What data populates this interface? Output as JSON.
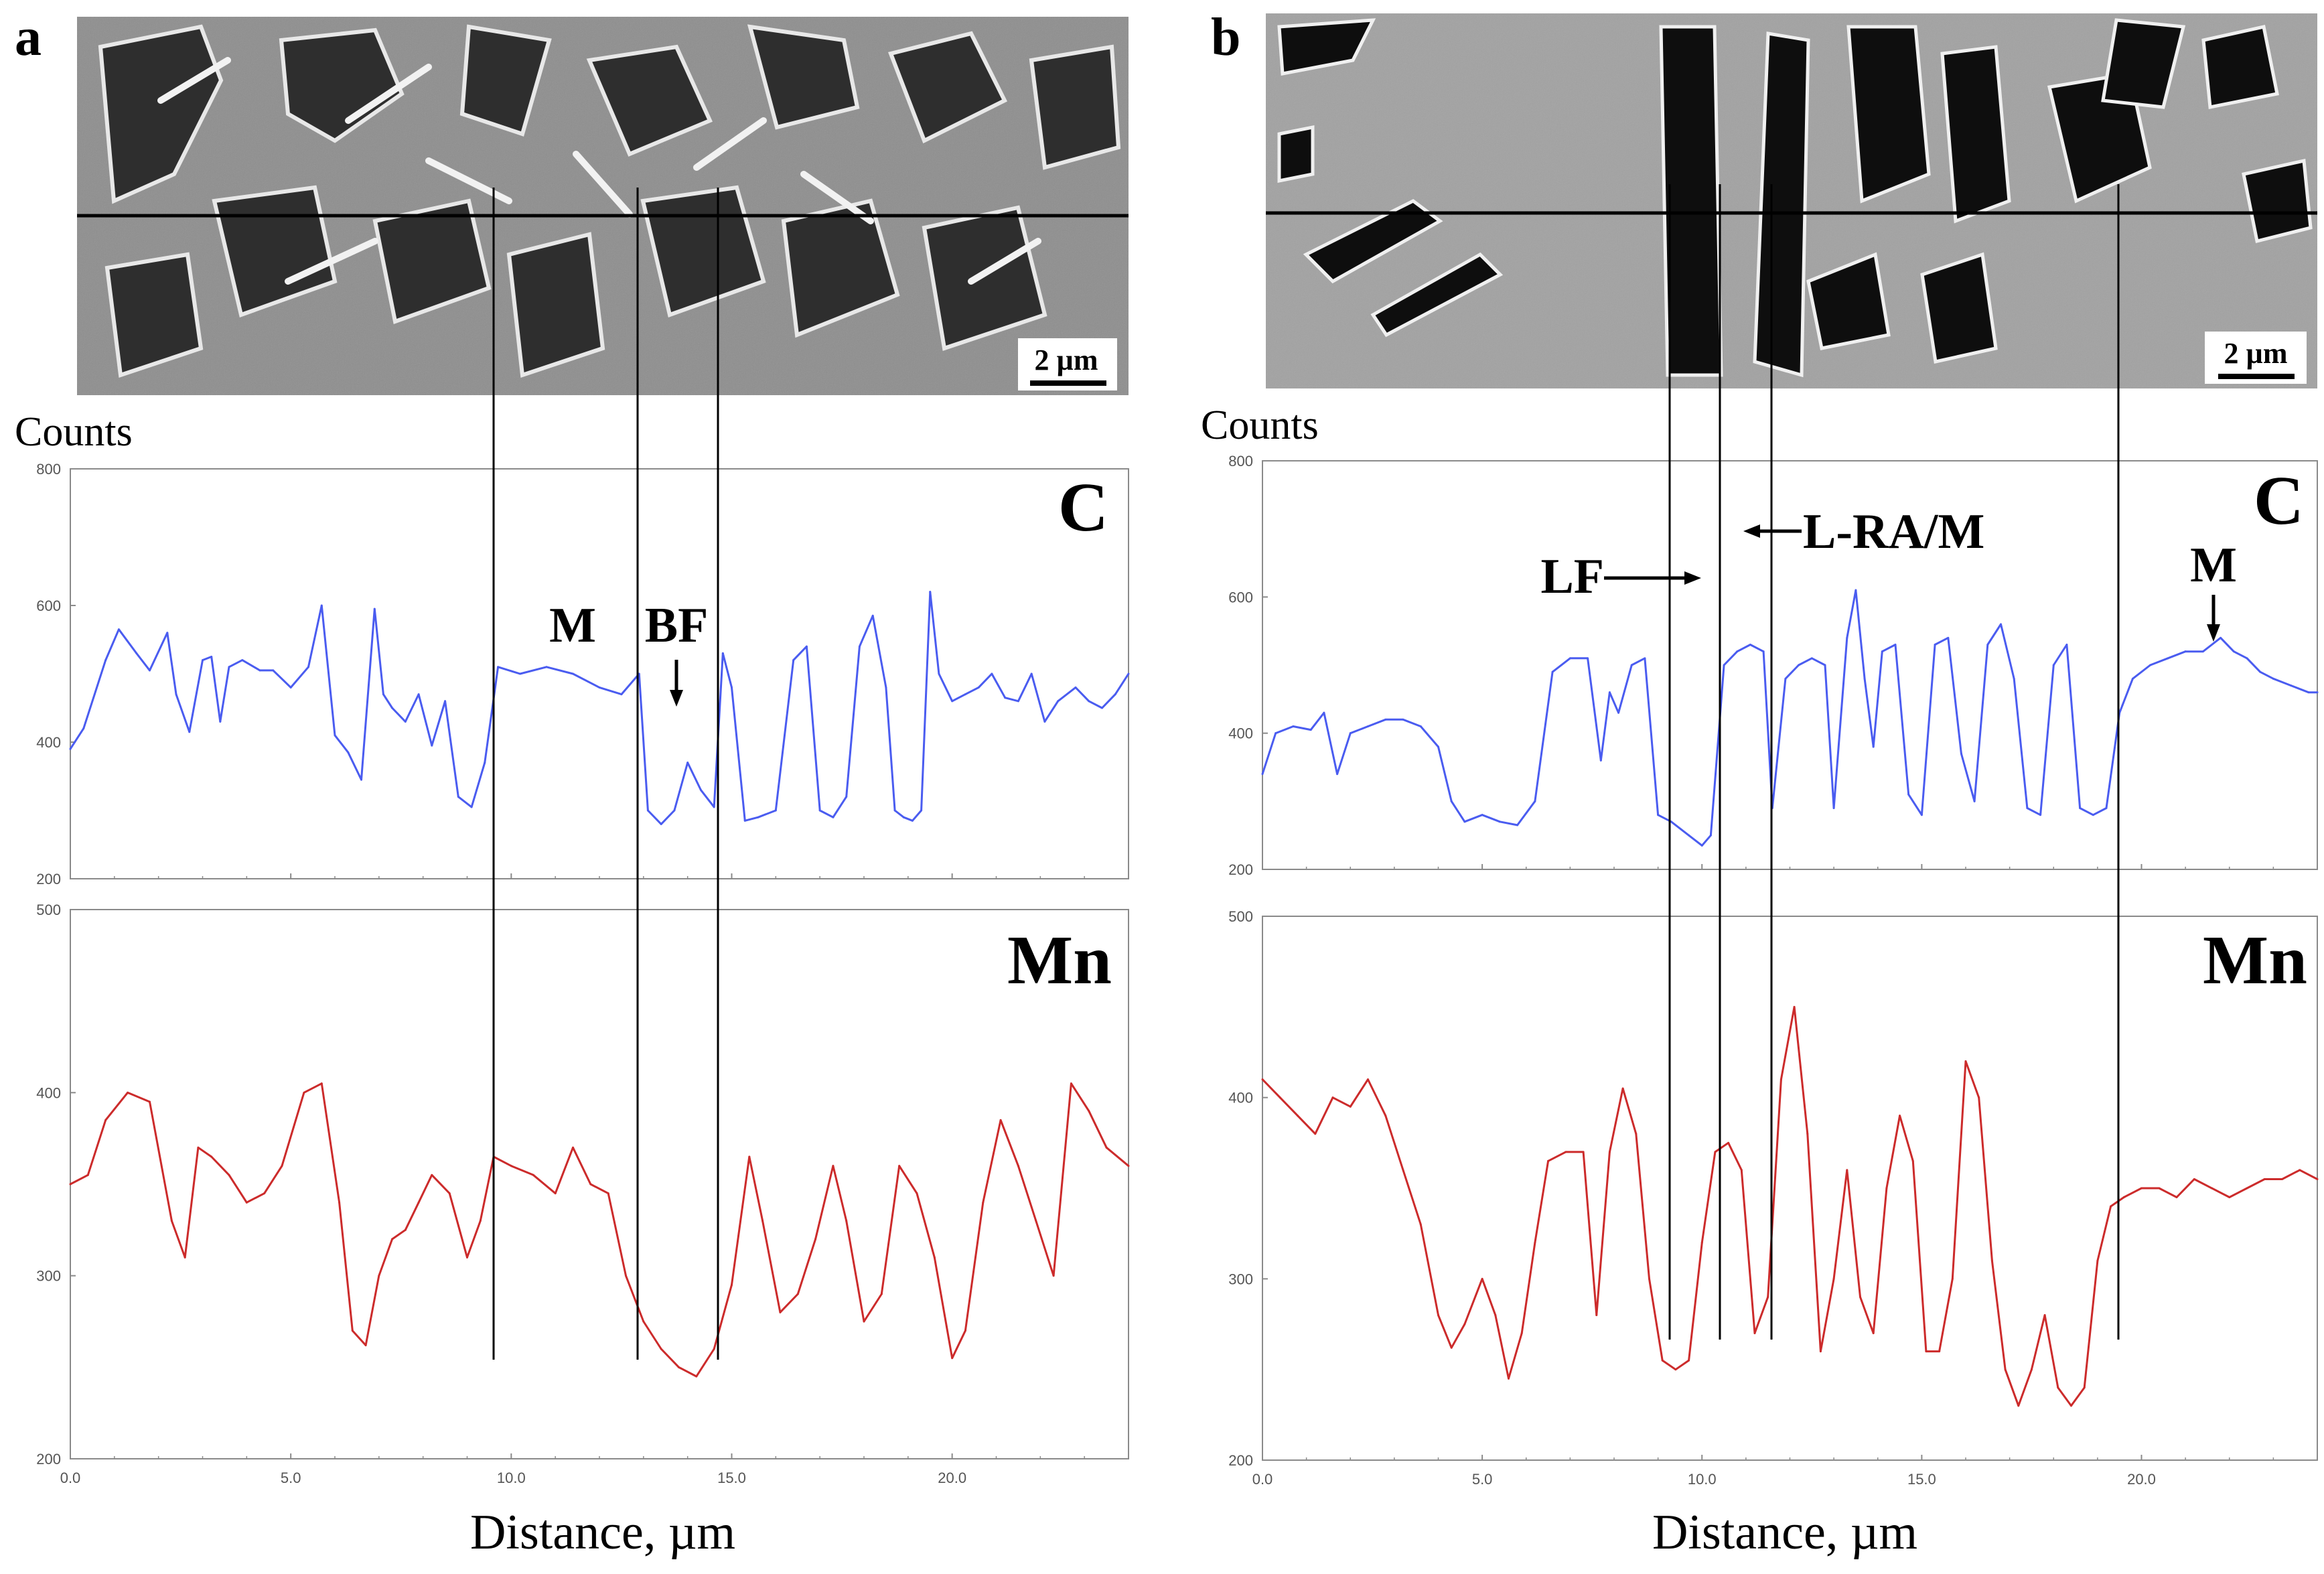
{
  "figure": {
    "panels": [
      {
        "letter": "a",
        "scale_bar": "2 µm",
        "y_axis_title": "Counts",
        "x_axis_title": "Distance, µm",
        "annotations": [
          "M",
          "BF"
        ]
      },
      {
        "letter": "b",
        "scale_bar": "2 µm",
        "y_axis_title": "Counts",
        "x_axis_title": "Distance, µm",
        "annotations": [
          "LF",
          "L-RA/M",
          "M"
        ]
      }
    ]
  },
  "colors": {
    "C": "#4a5cf0",
    "Mn": "#cc2b2b",
    "axis": "#8a8a8a",
    "micro_bg": "#8c8c8c"
  },
  "chart_data": [
    {
      "panel": "a",
      "element": "C",
      "type": "line",
      "xlabel": "Distance, µm",
      "ylabel": "Counts",
      "xlim": [
        0,
        24
      ],
      "ylim": [
        200,
        800
      ],
      "yticks": [
        200,
        400,
        600,
        800
      ],
      "xticks": [
        0,
        5,
        10,
        15,
        20
      ],
      "xtick_labels": [
        "0.0",
        "5.0",
        "10.0",
        "15.0",
        "20.0"
      ],
      "x": [
        0.0,
        0.3,
        0.8,
        1.1,
        1.5,
        1.8,
        2.2,
        2.4,
        2.7,
        3.0,
        3.2,
        3.4,
        3.6,
        3.9,
        4.3,
        4.6,
        5.0,
        5.4,
        5.7,
        6.0,
        6.3,
        6.6,
        6.9,
        7.1,
        7.3,
        7.6,
        7.9,
        8.2,
        8.5,
        8.8,
        9.1,
        9.4,
        9.7,
        10.2,
        10.8,
        11.4,
        12.0,
        12.5,
        12.9,
        13.1,
        13.4,
        13.7,
        14.0,
        14.3,
        14.6,
        14.8,
        15.0,
        15.3,
        15.6,
        16.0,
        16.4,
        16.7,
        17.0,
        17.3,
        17.6,
        17.9,
        18.2,
        18.5,
        18.7,
        18.9,
        19.1,
        19.3,
        19.5,
        19.7,
        20.0,
        20.3,
        20.6,
        20.9,
        21.2,
        21.5,
        21.8,
        22.1,
        22.4,
        22.8,
        23.1,
        23.4,
        23.7,
        24.0
      ],
      "y": [
        390,
        420,
        520,
        565,
        530,
        505,
        560,
        470,
        415,
        520,
        525,
        430,
        510,
        520,
        505,
        505,
        480,
        510,
        600,
        410,
        385,
        345,
        595,
        470,
        450,
        430,
        470,
        395,
        460,
        320,
        305,
        370,
        510,
        500,
        510,
        500,
        480,
        470,
        500,
        300,
        280,
        300,
        370,
        330,
        305,
        530,
        480,
        285,
        290,
        300,
        520,
        540,
        300,
        290,
        320,
        540,
        585,
        480,
        300,
        290,
        285,
        300,
        620,
        500,
        460,
        470,
        480,
        500,
        465,
        460,
        500,
        430,
        460,
        480,
        460,
        450,
        470,
        500
      ],
      "series": [
        {
          "name": "C"
        }
      ]
    },
    {
      "panel": "a",
      "element": "Mn",
      "type": "line",
      "xlabel": "Distance, µm",
      "ylabel": "Counts",
      "xlim": [
        0,
        24
      ],
      "ylim": [
        200,
        500
      ],
      "yticks": [
        200,
        300,
        400,
        500
      ],
      "xticks": [
        0,
        5,
        10,
        15,
        20
      ],
      "xtick_labels": [
        "0.0",
        "5.0",
        "10.0",
        "15.0",
        "20.0"
      ],
      "x": [
        0.0,
        0.4,
        0.8,
        1.3,
        1.8,
        2.3,
        2.6,
        2.9,
        3.2,
        3.6,
        4.0,
        4.4,
        4.8,
        5.3,
        5.7,
        6.1,
        6.4,
        6.7,
        7.0,
        7.3,
        7.6,
        7.9,
        8.2,
        8.6,
        9.0,
        9.3,
        9.6,
        10.0,
        10.5,
        11.0,
        11.4,
        11.8,
        12.2,
        12.6,
        13.0,
        13.4,
        13.8,
        14.2,
        14.6,
        15.0,
        15.4,
        15.7,
        16.1,
        16.5,
        16.9,
        17.3,
        17.6,
        18.0,
        18.4,
        18.8,
        19.2,
        19.6,
        20.0,
        20.3,
        20.7,
        21.1,
        21.5,
        21.9,
        22.3,
        22.7,
        23.1,
        23.5,
        24.0
      ],
      "y": [
        350,
        355,
        385,
        400,
        395,
        330,
        310,
        370,
        365,
        355,
        340,
        345,
        360,
        400,
        405,
        340,
        270,
        262,
        300,
        320,
        325,
        340,
        355,
        345,
        310,
        330,
        365,
        360,
        355,
        345,
        370,
        350,
        345,
        300,
        275,
        260,
        250,
        245,
        260,
        295,
        365,
        330,
        280,
        290,
        320,
        360,
        330,
        275,
        290,
        360,
        345,
        310,
        255,
        270,
        340,
        385,
        360,
        330,
        300,
        405,
        390,
        370,
        360
      ],
      "series": [
        {
          "name": "Mn"
        }
      ]
    },
    {
      "panel": "b",
      "element": "C",
      "type": "line",
      "xlabel": "Distance, µm",
      "ylabel": "Counts",
      "xlim": [
        0,
        24
      ],
      "ylim": [
        200,
        800
      ],
      "yticks": [
        200,
        400,
        600,
        800
      ],
      "xticks": [
        0,
        5,
        10,
        15,
        20
      ],
      "xtick_labels": [
        "0.0",
        "5.0",
        "10.0",
        "15.0",
        "20.0"
      ],
      "x": [
        0.0,
        0.3,
        0.7,
        1.1,
        1.4,
        1.7,
        2.0,
        2.4,
        2.8,
        3.2,
        3.6,
        4.0,
        4.3,
        4.6,
        5.0,
        5.4,
        5.8,
        6.2,
        6.6,
        7.0,
        7.4,
        7.7,
        7.9,
        8.1,
        8.4,
        8.7,
        9.0,
        9.3,
        9.7,
        10.0,
        10.2,
        10.5,
        10.8,
        11.1,
        11.4,
        11.6,
        11.9,
        12.2,
        12.5,
        12.8,
        13.0,
        13.3,
        13.5,
        13.7,
        13.9,
        14.1,
        14.4,
        14.7,
        15.0,
        15.3,
        15.6,
        15.9,
        16.2,
        16.5,
        16.8,
        17.1,
        17.4,
        17.7,
        18.0,
        18.3,
        18.6,
        18.9,
        19.2,
        19.5,
        19.8,
        20.2,
        20.6,
        21.0,
        21.4,
        21.8,
        22.1,
        22.4,
        22.7,
        23.0,
        23.4,
        23.8,
        24.0
      ],
      "y": [
        340,
        400,
        410,
        405,
        430,
        340,
        400,
        410,
        420,
        420,
        410,
        380,
        300,
        270,
        280,
        270,
        265,
        300,
        490,
        510,
        510,
        360,
        460,
        430,
        500,
        510,
        280,
        270,
        250,
        235,
        250,
        500,
        520,
        530,
        520,
        290,
        480,
        500,
        510,
        500,
        290,
        540,
        610,
        480,
        380,
        520,
        530,
        310,
        280,
        530,
        540,
        370,
        300,
        530,
        560,
        480,
        290,
        280,
        500,
        530,
        290,
        280,
        290,
        430,
        480,
        500,
        510,
        520,
        520,
        540,
        520,
        510,
        490,
        480,
        470,
        460,
        460
      ],
      "series": [
        {
          "name": "C"
        }
      ]
    },
    {
      "panel": "b",
      "element": "Mn",
      "type": "line",
      "xlabel": "Distance, µm",
      "ylabel": "Counts",
      "xlim": [
        0,
        24
      ],
      "ylim": [
        200,
        500
      ],
      "yticks": [
        200,
        300,
        400,
        500
      ],
      "xticks": [
        0,
        5,
        10,
        15,
        20
      ],
      "xtick_labels": [
        "0.0",
        "5.0",
        "10.0",
        "15.0",
        "20.0"
      ],
      "x": [
        0.0,
        0.4,
        0.8,
        1.2,
        1.6,
        2.0,
        2.4,
        2.8,
        3.2,
        3.6,
        4.0,
        4.3,
        4.6,
        5.0,
        5.3,
        5.6,
        5.9,
        6.2,
        6.5,
        6.9,
        7.3,
        7.6,
        7.9,
        8.2,
        8.5,
        8.8,
        9.1,
        9.4,
        9.7,
        10.0,
        10.3,
        10.6,
        10.9,
        11.2,
        11.5,
        11.8,
        12.1,
        12.4,
        12.7,
        13.0,
        13.3,
        13.6,
        13.9,
        14.2,
        14.5,
        14.8,
        15.1,
        15.4,
        15.7,
        16.0,
        16.3,
        16.6,
        16.9,
        17.2,
        17.5,
        17.8,
        18.1,
        18.4,
        18.7,
        19.0,
        19.3,
        19.6,
        20.0,
        20.4,
        20.8,
        21.2,
        21.6,
        22.0,
        22.4,
        22.8,
        23.2,
        23.6,
        24.0
      ],
      "y": [
        410,
        400,
        390,
        380,
        400,
        395,
        410,
        390,
        360,
        330,
        280,
        262,
        275,
        300,
        280,
        245,
        270,
        320,
        365,
        370,
        370,
        280,
        370,
        405,
        380,
        300,
        255,
        250,
        255,
        320,
        370,
        375,
        360,
        270,
        290,
        410,
        450,
        380,
        260,
        300,
        360,
        290,
        270,
        350,
        390,
        365,
        260,
        260,
        300,
        420,
        400,
        310,
        250,
        230,
        250,
        280,
        240,
        230,
        240,
        310,
        340,
        345,
        350,
        350,
        345,
        355,
        350,
        345,
        350,
        355,
        355,
        360,
        355
      ],
      "series": [
        {
          "name": "Mn"
        }
      ]
    }
  ]
}
